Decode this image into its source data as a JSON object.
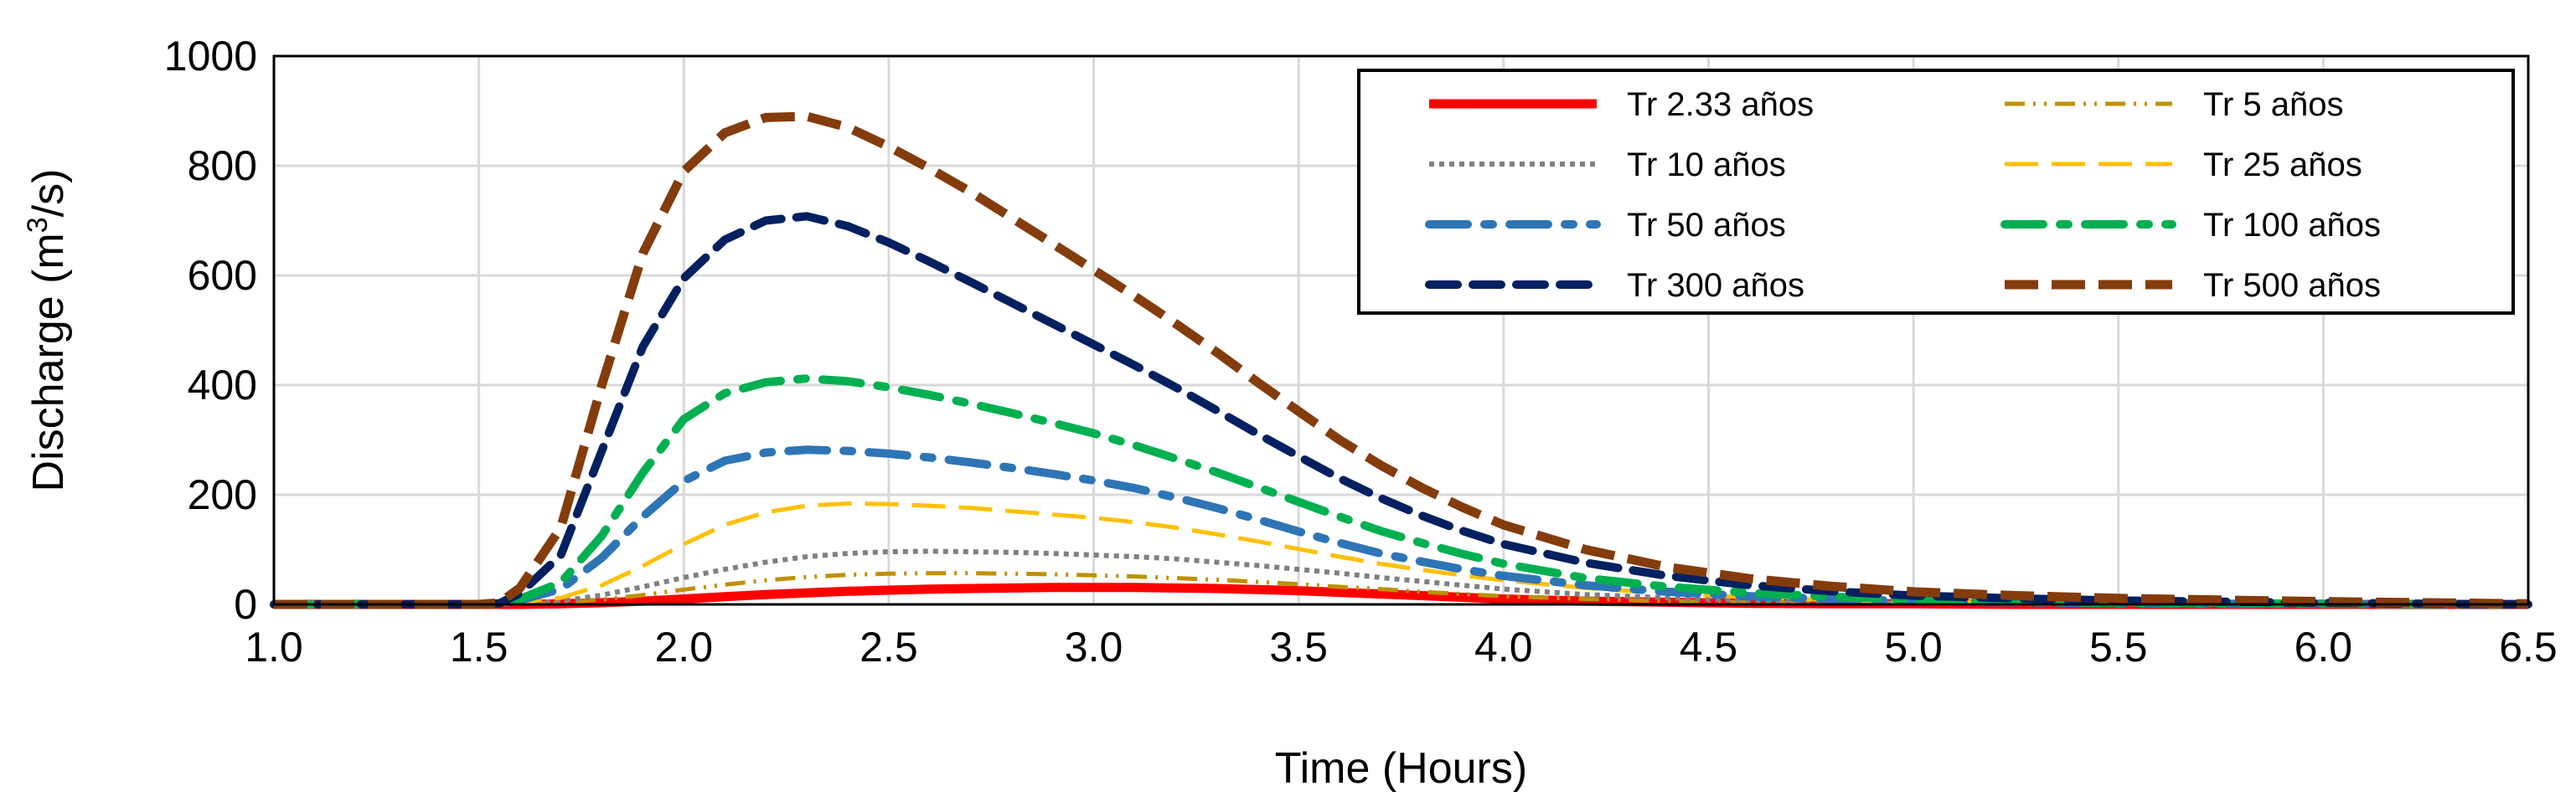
{
  "chart_data": {
    "type": "line",
    "xlabel": "Time (Hours)",
    "ylabel_main": "Discharge (m",
    "ylabel_sup": "3",
    "ylabel_tail": "/s)",
    "xlim": [
      1.0,
      6.5
    ],
    "ylim": [
      0,
      1000
    ],
    "x_ticks": [
      "1.0",
      "1.5",
      "2.0",
      "2.5",
      "3.0",
      "3.5",
      "4.0",
      "4.5",
      "5.0",
      "5.5",
      "6.0",
      "6.5"
    ],
    "y_ticks": [
      "0",
      "200",
      "400",
      "600",
      "800",
      "1000"
    ],
    "grid": true,
    "legend_position": "top-right",
    "x": [
      1.0,
      1.1,
      1.2,
      1.3,
      1.4,
      1.5,
      1.55,
      1.6,
      1.7,
      1.8,
      1.9,
      2.0,
      2.1,
      2.2,
      2.3,
      2.4,
      2.5,
      2.6,
      2.7,
      2.8,
      2.9,
      3.0,
      3.1,
      3.2,
      3.3,
      3.4,
      3.5,
      3.6,
      3.7,
      3.8,
      3.9,
      4.0,
      4.2,
      4.4,
      4.6,
      4.8,
      5.0,
      5.25,
      5.5,
      5.75,
      6.0,
      6.25,
      6.5
    ],
    "series": [
      {
        "name": "Tr 2.33 años",
        "color": "#ff0000",
        "dash": "solid",
        "values": [
          0,
          0,
          0,
          0,
          0,
          0,
          0,
          0,
          1,
          3,
          6,
          10,
          14,
          18,
          21,
          24,
          26,
          28,
          29,
          30,
          31,
          31,
          31,
          30,
          29,
          27,
          25,
          22,
          19,
          16,
          13,
          10,
          6,
          4,
          2,
          1,
          1,
          0,
          0,
          0,
          0,
          0,
          0
        ]
      },
      {
        "name": "Tr 5 años",
        "color": "#bf9000",
        "dash": "dashdotdot",
        "values": [
          0,
          0,
          0,
          0,
          0,
          0,
          0,
          1,
          3,
          9,
          17,
          27,
          36,
          44,
          50,
          54,
          56,
          57,
          57,
          56,
          55,
          53,
          51,
          48,
          45,
          41,
          37,
          32,
          28,
          23,
          19,
          15,
          10,
          6,
          4,
          2,
          1,
          1,
          0,
          0,
          0,
          0,
          0
        ]
      },
      {
        "name": "Tr 10 años",
        "color": "#808080",
        "dash": "dotted",
        "values": [
          0,
          0,
          0,
          0,
          0,
          0,
          0,
          2,
          6,
          17,
          32,
          49,
          64,
          77,
          87,
          93,
          96,
          97,
          96,
          95,
          93,
          90,
          87,
          83,
          77,
          71,
          64,
          57,
          49,
          42,
          35,
          28,
          18,
          12,
          7,
          4,
          2,
          1,
          1,
          0,
          0,
          0,
          0
        ]
      },
      {
        "name": "Tr 25 años",
        "color": "#ffc000",
        "dash": "longdash",
        "values": [
          0,
          0,
          0,
          0,
          0,
          0,
          0,
          4,
          12,
          35,
          70,
          110,
          145,
          168,
          180,
          184,
          183,
          180,
          176,
          170,
          164,
          158,
          150,
          140,
          128,
          115,
          101,
          87,
          74,
          63,
          53,
          44,
          30,
          20,
          13,
          8,
          5,
          3,
          2,
          1,
          0,
          0,
          0
        ]
      },
      {
        "name": "Tr 50 años",
        "color": "#2e75b6",
        "dash": "dashdot",
        "values": [
          0,
          0,
          0,
          0,
          0,
          0,
          1,
          8,
          28,
          85,
          160,
          225,
          262,
          277,
          282,
          280,
          275,
          268,
          259,
          249,
          238,
          226,
          212,
          195,
          176,
          155,
          133,
          112,
          93,
          78,
          64,
          52,
          35,
          23,
          15,
          10,
          6,
          4,
          2,
          1,
          1,
          0,
          0
        ]
      },
      {
        "name": "Tr 100 años",
        "color": "#00b050",
        "dash": "dashdot",
        "values": [
          0,
          0,
          0,
          0,
          0,
          0,
          1,
          10,
          40,
          125,
          240,
          338,
          385,
          405,
          412,
          407,
          396,
          382,
          366,
          349,
          331,
          312,
          290,
          266,
          241,
          214,
          187,
          160,
          134,
          112,
          92,
          74,
          48,
          32,
          21,
          14,
          9,
          5,
          3,
          2,
          1,
          0,
          0
        ]
      },
      {
        "name": "Tr 300 años",
        "color": "#002060",
        "dash": "dash",
        "values": [
          0,
          0,
          0,
          0,
          0,
          0,
          2,
          20,
          90,
          280,
          470,
          595,
          665,
          700,
          708,
          690,
          660,
          625,
          588,
          550,
          512,
          474,
          436,
          396,
          354,
          311,
          270,
          230,
          194,
          162,
          134,
          110,
          76,
          52,
          35,
          24,
          16,
          11,
          7,
          5,
          3,
          1,
          0
        ]
      },
      {
        "name": "Tr 500 años",
        "color": "#843c0c",
        "dash": "longdash",
        "values": [
          0,
          0,
          0,
          0,
          0,
          0,
          3,
          30,
          140,
          400,
          640,
          790,
          860,
          888,
          890,
          870,
          835,
          795,
          752,
          705,
          658,
          610,
          562,
          512,
          460,
          405,
          352,
          300,
          254,
          213,
          177,
          145,
          100,
          68,
          47,
          33,
          23,
          16,
          11,
          8,
          5,
          3,
          1
        ]
      }
    ]
  }
}
